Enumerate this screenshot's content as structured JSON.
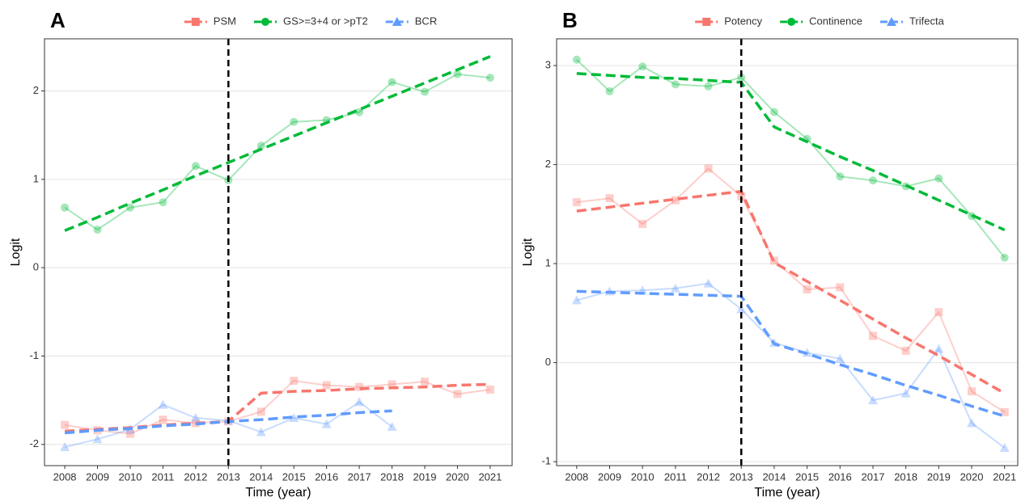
{
  "chart_data": [
    {
      "type": "line",
      "panel_label": "A",
      "ylabel": "Logit",
      "xlabel": "Time (year)",
      "x": [
        2008,
        2009,
        2010,
        2011,
        2012,
        2013,
        2014,
        2015,
        2016,
        2017,
        2018,
        2019,
        2020,
        2021
      ],
      "xlim": [
        2007.38,
        2021.67
      ],
      "xticks": [
        2008,
        2009,
        2010,
        2011,
        2012,
        2013,
        2014,
        2015,
        2016,
        2017,
        2018,
        2019,
        2020,
        2021
      ],
      "ylim": [
        -2.24,
        2.59
      ],
      "yticks": [
        -2,
        -1,
        0,
        1,
        2
      ],
      "grid": "y",
      "breakpoint": 2013,
      "legend": "top",
      "series": [
        {
          "name": "PSM",
          "color": "#f8766d",
          "shape": "square",
          "values": [
            -1.78,
            -1.84,
            -1.88,
            -1.72,
            -1.76,
            -1.74,
            -1.63,
            -1.28,
            -1.33,
            -1.35,
            -1.32,
            -1.29,
            -1.43,
            -1.38
          ],
          "fit_values": [
            -1.85,
            -1.83,
            -1.81,
            -1.78,
            -1.76,
            -1.74,
            -1.42,
            -1.4,
            -1.39,
            -1.37,
            -1.36,
            -1.35,
            -1.33,
            -1.32
          ]
        },
        {
          "name": "GS>=3+4 or >pT2",
          "color": "#00ba38",
          "shape": "circle",
          "values": [
            0.68,
            0.43,
            0.68,
            0.74,
            1.15,
            0.99,
            1.38,
            1.65,
            1.67,
            1.76,
            2.1,
            1.99,
            2.19,
            2.15
          ],
          "fit_values": [
            0.42,
            0.57,
            0.73,
            0.88,
            1.04,
            1.19,
            1.34,
            1.49,
            1.64,
            1.79,
            1.94,
            2.09,
            2.24,
            2.39
          ]
        },
        {
          "name": "BCR",
          "color": "#619cff",
          "shape": "triangle",
          "values": [
            -2.03,
            -1.94,
            -1.83,
            -1.55,
            -1.7,
            -1.73,
            -1.86,
            -1.7,
            -1.77,
            -1.52,
            -1.8,
            null,
            null,
            null
          ],
          "fit_values": [
            -1.87,
            -1.84,
            -1.82,
            -1.79,
            -1.77,
            -1.74,
            -1.72,
            -1.69,
            -1.67,
            -1.64,
            -1.62,
            null,
            null,
            null
          ]
        }
      ]
    },
    {
      "type": "line",
      "panel_label": "B",
      "ylabel": "Logit",
      "xlabel": "Time (year)",
      "x": [
        2008,
        2009,
        2010,
        2011,
        2012,
        2013,
        2014,
        2015,
        2016,
        2017,
        2018,
        2019,
        2020,
        2021
      ],
      "xlim": [
        2007.39,
        2021.4
      ],
      "xticks": [
        2008,
        2009,
        2010,
        2011,
        2012,
        2013,
        2014,
        2015,
        2016,
        2017,
        2018,
        2019,
        2020,
        2021
      ],
      "ylim": [
        -1.04,
        3.27
      ],
      "yticks": [
        -1,
        0,
        1,
        2,
        3
      ],
      "grid": "y",
      "breakpoint": 2013,
      "legend": "top",
      "series": [
        {
          "name": "Potency",
          "color": "#f8766d",
          "shape": "square",
          "values": [
            1.62,
            1.66,
            1.4,
            1.64,
            1.96,
            1.68,
            1.03,
            0.74,
            0.76,
            0.27,
            0.12,
            0.51,
            -0.29,
            -0.5
          ],
          "fit_values": [
            1.53,
            1.57,
            1.61,
            1.65,
            1.69,
            1.73,
            1.01,
            0.82,
            0.63,
            0.44,
            0.25,
            0.07,
            -0.12,
            -0.31
          ]
        },
        {
          "name": "Continence",
          "color": "#00ba38",
          "shape": "circle",
          "values": [
            3.06,
            2.74,
            2.99,
            2.81,
            2.79,
            2.88,
            2.53,
            2.26,
            1.88,
            1.84,
            1.78,
            1.86,
            1.48,
            1.06
          ],
          "fit_values": [
            2.92,
            2.9,
            2.88,
            2.87,
            2.85,
            2.83,
            2.38,
            2.23,
            2.08,
            1.94,
            1.79,
            1.64,
            1.49,
            1.34
          ]
        },
        {
          "name": "Trifecta",
          "color": "#619cff",
          "shape": "triangle",
          "values": [
            0.63,
            0.72,
            0.73,
            0.75,
            0.8,
            0.54,
            0.2,
            0.1,
            0.04,
            -0.38,
            -0.31,
            0.14,
            -0.61,
            -0.86
          ],
          "fit_values": [
            0.72,
            0.71,
            0.7,
            0.69,
            0.68,
            0.67,
            0.19,
            0.09,
            -0.02,
            -0.12,
            -0.23,
            -0.33,
            -0.44,
            -0.54
          ]
        }
      ]
    }
  ]
}
